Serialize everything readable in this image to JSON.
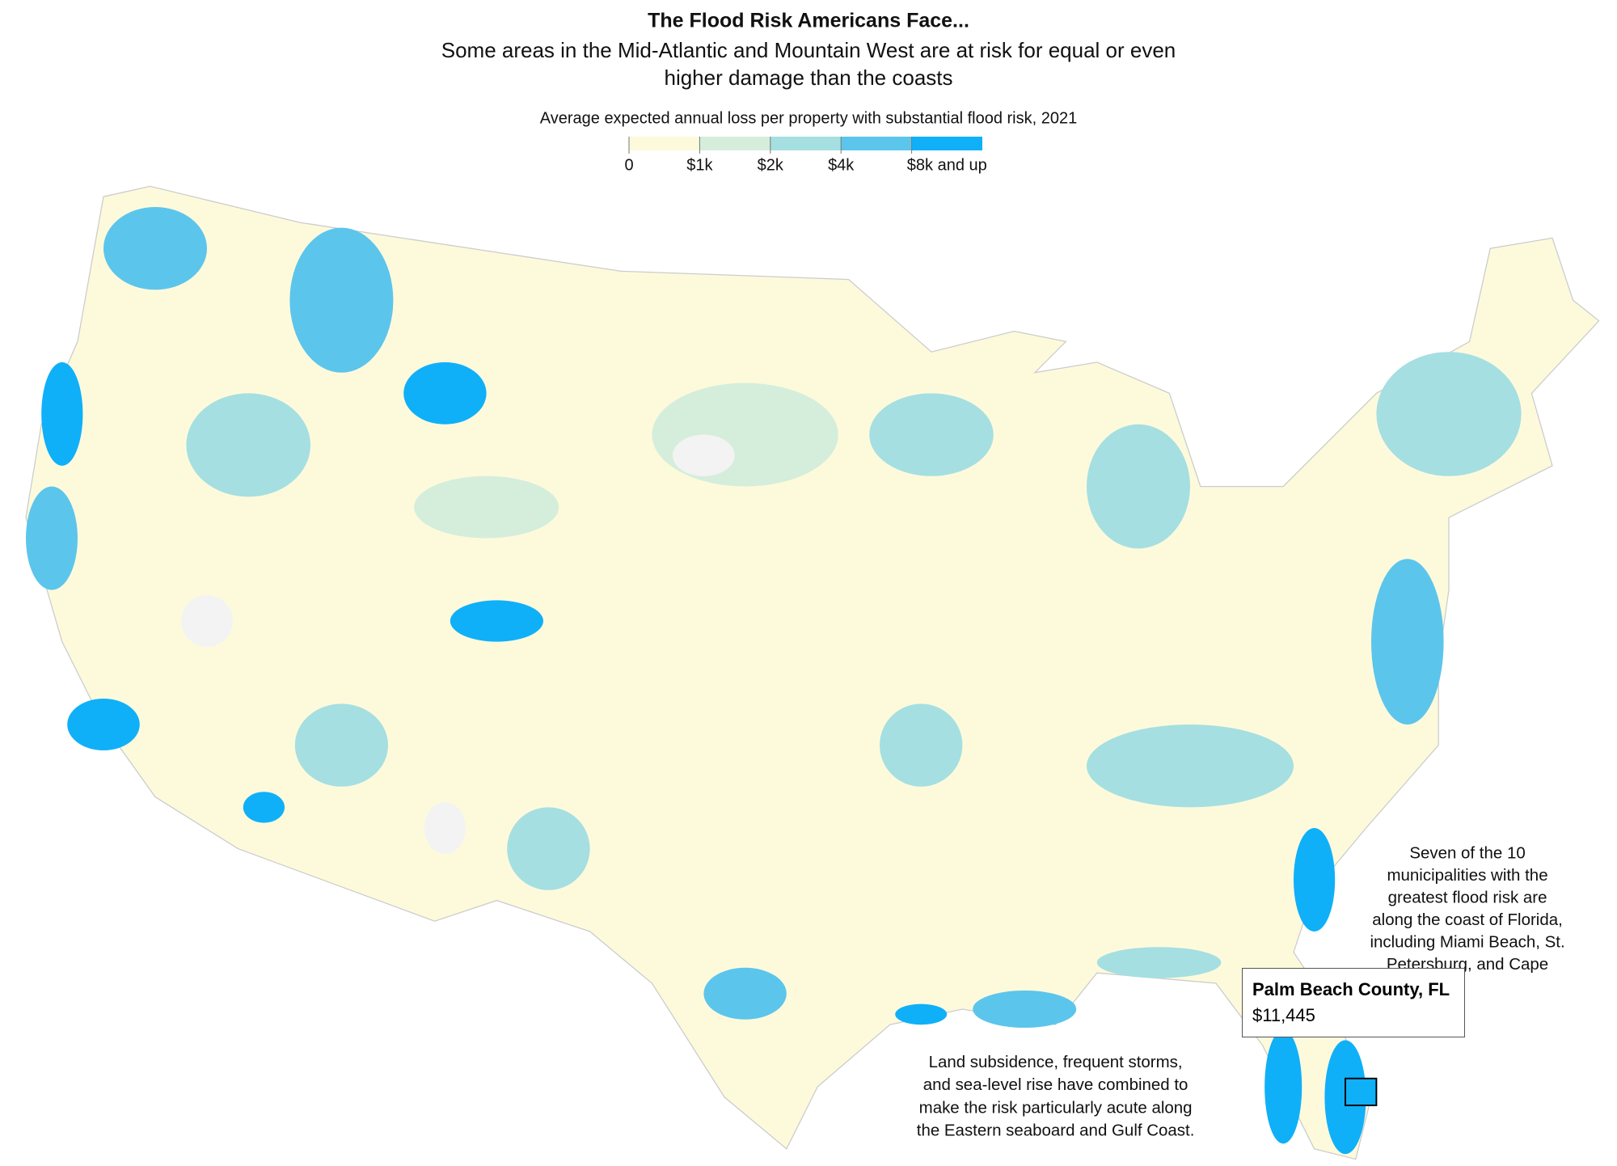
{
  "header": {
    "title": "The Flood Risk Americans Face...",
    "subtitle": [
      "Some areas in the Mid-Atlantic and Mountain West are at risk for equal or even",
      "higher damage than the coasts"
    ]
  },
  "legend": {
    "title": "Average expected annual loss per property with substantial flood risk, 2021",
    "bins": [
      {
        "label": "0",
        "color": "#fdfadc"
      },
      {
        "label": "$1k",
        "color": "#d5eedb"
      },
      {
        "label": "$2k",
        "color": "#a5dfe1"
      },
      {
        "label": "$4k",
        "color": "#5cc5ec"
      },
      {
        "label": "$8k and up",
        "color": "#0fb0f8"
      }
    ]
  },
  "annotations": [
    {
      "lines": [
        "Seven of the 10",
        "municipalities with the",
        "greatest flood risk are",
        "along the coast of Florida,",
        "including Miami Beach, St.",
        "Petersburg, and Cape"
      ]
    },
    {
      "lines": [
        "Land subsidence, frequent storms,",
        "and sea-level rise have combined to",
        "make the risk particularly acute along",
        "the Eastern seaboard and Gulf Coast."
      ]
    }
  ],
  "tooltip": {
    "title": "Palm Beach County, FL",
    "value": "$11,445"
  }
}
